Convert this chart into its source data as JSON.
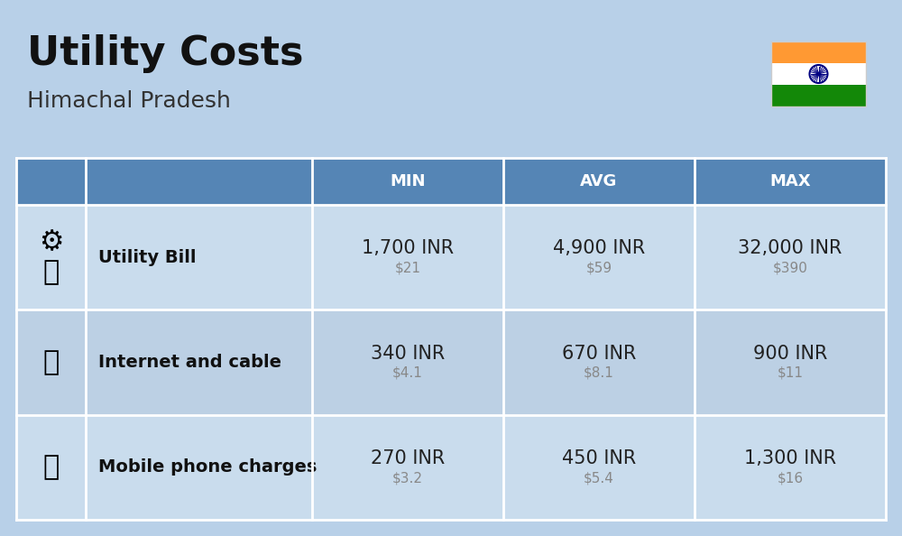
{
  "title": "Utility Costs",
  "subtitle": "Himachal Pradesh",
  "background_color": "#b8d0e8",
  "header_bg_color": "#5585b5",
  "header_text_color": "#ffffff",
  "row_bg_odd": "#c9dced",
  "row_bg_even": "#bcd0e4",
  "col_headers": [
    "MIN",
    "AVG",
    "MAX"
  ],
  "rows": [
    {
      "label": "Utility Bill",
      "min_inr": "1,700 INR",
      "min_usd": "$21",
      "avg_inr": "4,900 INR",
      "avg_usd": "$59",
      "max_inr": "32,000 INR",
      "max_usd": "$390"
    },
    {
      "label": "Internet and cable",
      "min_inr": "340 INR",
      "min_usd": "$4.1",
      "avg_inr": "670 INR",
      "avg_usd": "$8.1",
      "max_inr": "900 INR",
      "max_usd": "$11"
    },
    {
      "label": "Mobile phone charges",
      "min_inr": "270 INR",
      "min_usd": "$3.2",
      "avg_inr": "450 INR",
      "avg_usd": "$5.4",
      "max_inr": "1,300 INR",
      "max_usd": "$16"
    }
  ],
  "flag_colors": [
    "#ff9933",
    "#ffffff",
    "#138808"
  ],
  "flag_chakra_color": "#000080",
  "inr_fontsize": 15,
  "usd_fontsize": 11,
  "usd_color": "#888888",
  "label_fontsize": 14,
  "header_fontsize": 13,
  "title_fontsize": 32,
  "subtitle_fontsize": 18,
  "title_color": "#111111",
  "subtitle_color": "#333333",
  "label_color": "#111111",
  "inr_color": "#222222",
  "line_color": "#ffffff",
  "line_width": 2.0
}
